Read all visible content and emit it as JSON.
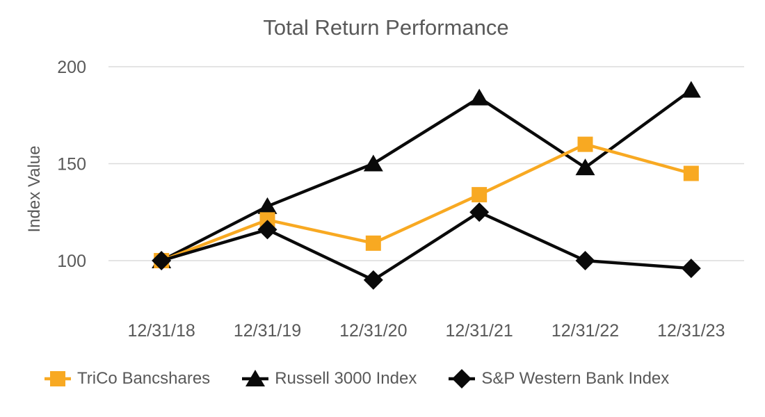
{
  "chart_data": {
    "type": "line",
    "title": "Total Return Performance",
    "ylabel": "Index Value",
    "xlabel": "",
    "categories": [
      "12/31/18",
      "12/31/19",
      "12/31/20",
      "12/31/21",
      "12/31/22",
      "12/31/23"
    ],
    "series": [
      {
        "name": "TriCo Bancshares",
        "marker": "square",
        "color": "#F8A922",
        "values": [
          100,
          121,
          109,
          134,
          160,
          145
        ]
      },
      {
        "name": "Russell 3000 Index",
        "marker": "triangle",
        "color": "#0A0A0A",
        "values": [
          100,
          128,
          150,
          184,
          148,
          188
        ]
      },
      {
        "name": "S&P Western Bank Index",
        "marker": "diamond",
        "color": "#0A0A0A",
        "values": [
          100,
          116,
          90,
          125,
          100,
          96
        ]
      }
    ],
    "draw_order": [
      1,
      0,
      2
    ],
    "y_ticks": [
      100,
      150,
      200
    ],
    "ylim": [
      70,
      210
    ],
    "grid": "horizontal-only",
    "legend_position": "bottom"
  },
  "colors": {
    "text": "#595959",
    "gridline": "#DCDCDC",
    "background": "#FFFFFF"
  }
}
